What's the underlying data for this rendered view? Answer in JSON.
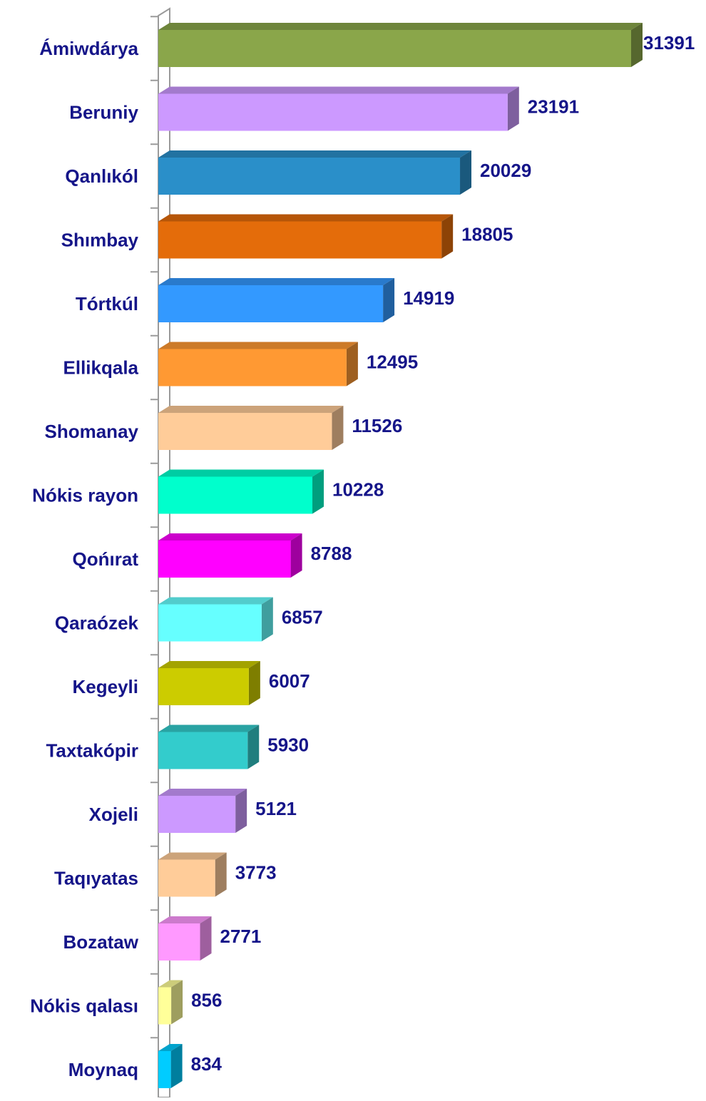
{
  "chart_data": {
    "type": "bar",
    "orientation": "horizontal",
    "categories": [
      "Ámiwdárya",
      "Beruniy",
      "Qanlıkól",
      "Shımbay",
      "Tórtkúl",
      "Ellikqala",
      "Shomanay",
      "Nókis rayon",
      "Qońırat",
      "Qaraózek",
      "Kegeyli",
      "Taxtakópir",
      "Xojeli",
      "Taqıyatas",
      "Bozataw",
      "Nókis qalası",
      "Moynaq"
    ],
    "values": [
      31391,
      23191,
      20029,
      18805,
      14919,
      12495,
      11526,
      10228,
      8788,
      6857,
      6007,
      5930,
      5121,
      3773,
      2771,
      856,
      834
    ],
    "colors": [
      "#8aa64a",
      "#cc99ff",
      "#2a8fc9",
      "#e46c0a",
      "#3399ff",
      "#ff9933",
      "#ffcc99",
      "#00ffcc",
      "#ff00ff",
      "#66ffff",
      "#cccc00",
      "#33cccc",
      "#cc99ff",
      "#ffcc99",
      "#ff99ff",
      "#ffff99",
      "#00ccff"
    ]
  }
}
